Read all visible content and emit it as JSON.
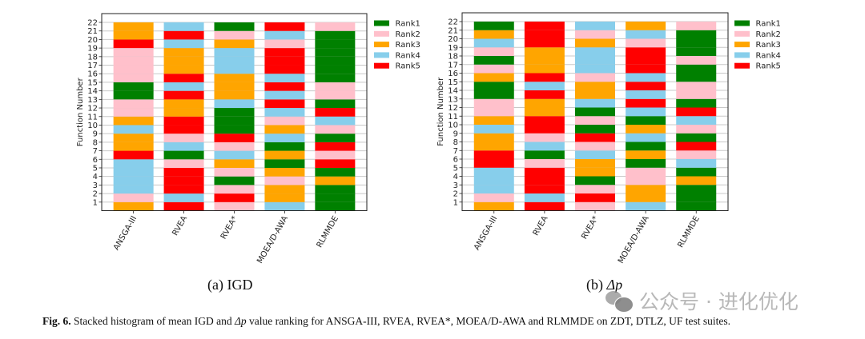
{
  "colors": {
    "Rank1": "#008000",
    "Rank2": "#FFC0CB",
    "Rank3": "#FFA500",
    "Rank4": "#87CEEB",
    "Rank5": "#FF0000"
  },
  "chart_data": [
    {
      "type": "bar",
      "stacked": true,
      "title": "",
      "subcaption_prefix": "(a)",
      "subcaption_metric": "IGD",
      "xlabel": "",
      "ylabel": "Function Number",
      "ylim": [
        0,
        22
      ],
      "yticks": [
        1,
        2,
        3,
        4,
        5,
        6,
        7,
        8,
        9,
        10,
        11,
        12,
        13,
        14,
        15,
        16,
        17,
        18,
        19,
        20,
        21,
        22
      ],
      "grid": "horizontal",
      "legend": {
        "placement": "outside-right-top",
        "entries": [
          "Rank1",
          "Rank2",
          "Rank3",
          "Rank4",
          "Rank5"
        ]
      },
      "categories": [
        "ANSGA-III",
        "RVEA",
        "RVEA*",
        "MOEA/D-AWA",
        "RLMMDE"
      ],
      "series_note": "Each bar stacks 22 unit segments; segment k (function k) is colored by that algorithm's rank on function k.",
      "ranks_by_function": {
        "ANSGA-III": [
          "Rank3",
          "Rank2",
          "Rank4",
          "Rank4",
          "Rank4",
          "Rank4",
          "Rank5",
          "Rank3",
          "Rank3",
          "Rank4",
          "Rank3",
          "Rank2",
          "Rank2",
          "Rank1",
          "Rank1",
          "Rank2",
          "Rank2",
          "Rank2",
          "Rank2",
          "Rank5",
          "Rank3",
          "Rank3"
        ],
        "RVEA": [
          "Rank5",
          "Rank4",
          "Rank5",
          "Rank5",
          "Rank5",
          "Rank2",
          "Rank1",
          "Rank4",
          "Rank2",
          "Rank5",
          "Rank5",
          "Rank3",
          "Rank3",
          "Rank5",
          "Rank4",
          "Rank5",
          "Rank3",
          "Rank3",
          "Rank3",
          "Rank4",
          "Rank5",
          "Rank4"
        ],
        "RVEA*": [
          "Rank2",
          "Rank5",
          "Rank2",
          "Rank1",
          "Rank2",
          "Rank3",
          "Rank4",
          "Rank2",
          "Rank5",
          "Rank1",
          "Rank1",
          "Rank1",
          "Rank4",
          "Rank3",
          "Rank3",
          "Rank3",
          "Rank4",
          "Rank4",
          "Rank4",
          "Rank3",
          "Rank2",
          "Rank1"
        ],
        "MOEA/D-AWA": [
          "Rank4",
          "Rank3",
          "Rank3",
          "Rank2",
          "Rank3",
          "Rank1",
          "Rank3",
          "Rank1",
          "Rank4",
          "Rank3",
          "Rank2",
          "Rank4",
          "Rank5",
          "Rank4",
          "Rank5",
          "Rank4",
          "Rank5",
          "Rank5",
          "Rank5",
          "Rank2",
          "Rank4",
          "Rank5"
        ],
        "RLMMDE": [
          "Rank1",
          "Rank1",
          "Rank1",
          "Rank3",
          "Rank1",
          "Rank5",
          "Rank2",
          "Rank5",
          "Rank1",
          "Rank2",
          "Rank4",
          "Rank5",
          "Rank1",
          "Rank2",
          "Rank2",
          "Rank1",
          "Rank1",
          "Rank1",
          "Rank1",
          "Rank1",
          "Rank1",
          "Rank2"
        ]
      }
    },
    {
      "type": "bar",
      "stacked": true,
      "title": "",
      "subcaption_prefix": "(b)",
      "subcaption_metric": "Δp",
      "xlabel": "",
      "ylabel": "Function Number",
      "ylim": [
        0,
        22
      ],
      "yticks": [
        1,
        2,
        3,
        4,
        5,
        6,
        7,
        8,
        9,
        10,
        11,
        12,
        13,
        14,
        15,
        16,
        17,
        18,
        19,
        20,
        21,
        22
      ],
      "grid": "horizontal",
      "legend": {
        "placement": "outside-right-top",
        "entries": [
          "Rank1",
          "Rank2",
          "Rank3",
          "Rank4",
          "Rank5"
        ]
      },
      "categories": [
        "ANSGA-III",
        "RVEA",
        "RVEA*",
        "MOEA/D-AWA",
        "RLMMDE"
      ],
      "series_note": "Each bar stacks 22 unit segments; segment k (function k) is colored by that algorithm's rank on function k.",
      "ranks_by_function": {
        "ANSGA-III": [
          "Rank3",
          "Rank2",
          "Rank4",
          "Rank4",
          "Rank4",
          "Rank5",
          "Rank5",
          "Rank3",
          "Rank3",
          "Rank4",
          "Rank3",
          "Rank2",
          "Rank2",
          "Rank1",
          "Rank1",
          "Rank3",
          "Rank2",
          "Rank1",
          "Rank2",
          "Rank4",
          "Rank3",
          "Rank1"
        ],
        "RVEA": [
          "Rank5",
          "Rank4",
          "Rank5",
          "Rank5",
          "Rank5",
          "Rank2",
          "Rank1",
          "Rank4",
          "Rank2",
          "Rank5",
          "Rank5",
          "Rank3",
          "Rank3",
          "Rank5",
          "Rank4",
          "Rank5",
          "Rank3",
          "Rank3",
          "Rank3",
          "Rank5",
          "Rank5",
          "Rank5"
        ],
        "RVEA*": [
          "Rank2",
          "Rank5",
          "Rank2",
          "Rank1",
          "Rank3",
          "Rank3",
          "Rank4",
          "Rank2",
          "Rank5",
          "Rank1",
          "Rank2",
          "Rank1",
          "Rank4",
          "Rank3",
          "Rank3",
          "Rank2",
          "Rank4",
          "Rank4",
          "Rank4",
          "Rank3",
          "Rank2",
          "Rank4"
        ],
        "MOEA/D-AWA": [
          "Rank4",
          "Rank3",
          "Rank3",
          "Rank2",
          "Rank2",
          "Rank1",
          "Rank3",
          "Rank1",
          "Rank4",
          "Rank3",
          "Rank1",
          "Rank4",
          "Rank5",
          "Rank4",
          "Rank5",
          "Rank4",
          "Rank5",
          "Rank5",
          "Rank5",
          "Rank2",
          "Rank4",
          "Rank3"
        ],
        "RLMMDE": [
          "Rank1",
          "Rank1",
          "Rank1",
          "Rank3",
          "Rank1",
          "Rank4",
          "Rank2",
          "Rank5",
          "Rank1",
          "Rank2",
          "Rank4",
          "Rank5",
          "Rank1",
          "Rank2",
          "Rank2",
          "Rank1",
          "Rank1",
          "Rank2",
          "Rank1",
          "Rank1",
          "Rank1",
          "Rank2"
        ]
      }
    }
  ],
  "figure_caption": {
    "label": "Fig. 6.",
    "text_before_symbol": "Stacked histogram of mean IGD and",
    "symbol": "Δp",
    "text_after_symbol": "value ranking for ANSGA-III, RVEA, RVEA*, MOEA/D-AWA and RLMMDE on ZDT, DTLZ, UF test suites."
  },
  "watermark": {
    "text": "公众号 · 进化优化"
  }
}
